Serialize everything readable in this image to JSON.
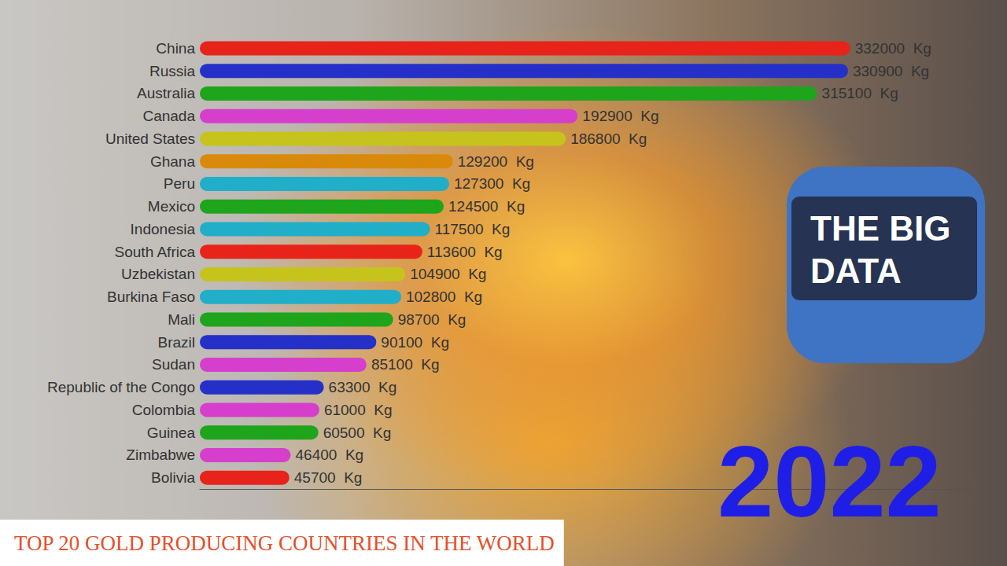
{
  "chart_data": {
    "type": "bar",
    "orientation": "horizontal",
    "title": "TOP 20 GOLD PRODUCING COUNTRIES IN THE WORLD",
    "annotations": [
      "THE BIG DATA",
      "2022"
    ],
    "categories": [
      "China",
      "Russia",
      "Australia",
      "Canada",
      "United States",
      "Ghana",
      "Peru",
      "Mexico",
      "Indonesia",
      "South Africa",
      "Uzbekistan",
      "Burkina Faso",
      "Mali",
      "Brazil",
      "Sudan",
      "Republic of the Congo",
      "Colombia",
      "Guinea",
      "Zimbabwe",
      "Bolivia"
    ],
    "values": [
      332000,
      330900,
      315100,
      192900,
      186800,
      129200,
      127300,
      124500,
      117500,
      113600,
      104900,
      102800,
      98700,
      90100,
      85100,
      63300,
      61000,
      60500,
      46400,
      45700
    ],
    "value_labels": [
      "332000  Kg",
      "330900  Kg",
      "315100  Kg",
      "192900  Kg",
      "186800  Kg",
      "129200  Kg",
      "127300  Kg",
      "124500  Kg",
      "117500  Kg",
      "113600  Kg",
      "104900  Kg",
      "102800  Kg",
      "98700  Kg",
      "90100  Kg",
      "85100  Kg",
      "63300  Kg",
      "61000  Kg",
      "60500  Kg",
      "46400  Kg",
      "45700  Kg"
    ],
    "colors": [
      "#e8231a",
      "#2530c8",
      "#1fa51c",
      "#d63fcc",
      "#c6c41c",
      "#d98a0a",
      "#20aec8",
      "#1fa51c",
      "#20aec8",
      "#e8231a",
      "#c6c41c",
      "#20aec8",
      "#1fa51c",
      "#2530c8",
      "#d63fcc",
      "#2530c8",
      "#d63fcc",
      "#1fa51c",
      "#d63fcc",
      "#e8231a"
    ],
    "xlim": [
      0,
      400000
    ],
    "grid": false,
    "data_labels": true,
    "tick_labels": "y"
  }
}
